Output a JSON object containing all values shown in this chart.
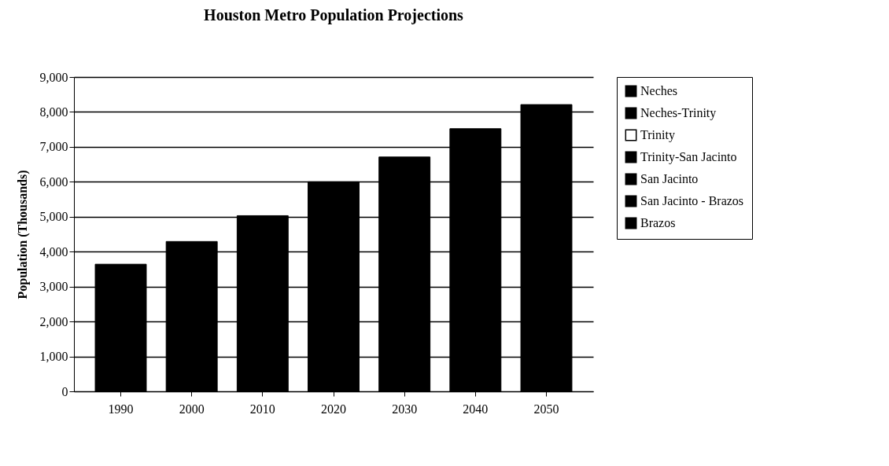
{
  "chart_data": {
    "type": "bar",
    "title": "Houston Metro Population Projections",
    "ylabel": "Population (Thousands)",
    "categories": [
      "1990",
      "2000",
      "2010",
      "2020",
      "2030",
      "2040",
      "2050"
    ],
    "series": [
      {
        "color": "#000000",
        "values": [
          3640,
          4290,
          5030,
          6000,
          6710,
          7520,
          8210
        ]
      },
      {
        "name": "Neches",
        "color": "#000000",
        "values": [
          null,
          null,
          null,
          null,
          null,
          null,
          null
        ]
      },
      {
        "name": "Neches-Trinity",
        "color": "#000000",
        "values": [
          null,
          null,
          null,
          null,
          null,
          null,
          null
        ]
      },
      {
        "name": "Trinity",
        "color": "#ffffff",
        "values": [
          null,
          null,
          null,
          null,
          null,
          null,
          null
        ]
      },
      {
        "name": "Trinity-San Jacinto",
        "color": "#000000",
        "values": [
          null,
          null,
          null,
          null,
          null,
          null,
          null
        ]
      },
      {
        "name": "San Jacinto",
        "color": "#000000",
        "values": [
          null,
          null,
          null,
          null,
          null,
          null,
          null
        ]
      },
      {
        "name": "San Jacinto - Brazos",
        "color": "#000000",
        "values": [
          null,
          null,
          null,
          null,
          null,
          null,
          null
        ]
      },
      {
        "name": "Brazos",
        "color": "#000000",
        "values": [
          null,
          null,
          null,
          null,
          null,
          null,
          null
        ]
      }
    ],
    "ylim": [
      0,
      9000
    ],
    "yticks": [
      {
        "value": 0,
        "label": "0"
      },
      {
        "value": 1000,
        "label": "1,000"
      },
      {
        "value": 2000,
        "label": "2,000"
      },
      {
        "value": 3000,
        "label": "3,000"
      },
      {
        "value": 4000,
        "label": "4,000"
      },
      {
        "value": 5000,
        "label": "5,000"
      },
      {
        "value": 6000,
        "label": "6,000"
      },
      {
        "value": 7000,
        "label": "7,000"
      },
      {
        "value": 8000,
        "label": "8,000"
      },
      {
        "value": 9000,
        "label": "9,000"
      }
    ],
    "grid": "y",
    "legend": "right"
  }
}
